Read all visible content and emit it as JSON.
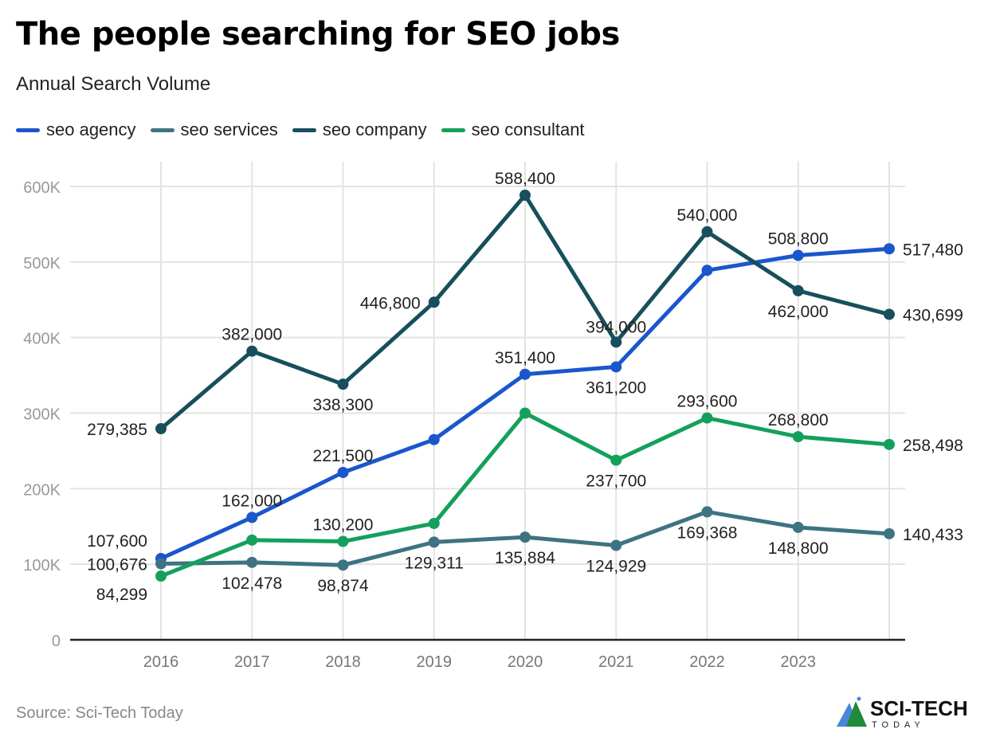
{
  "title": "The people searching for SEO jobs",
  "subtitle": "Annual Search Volume",
  "source": "Source: Sci-Tech Today",
  "logo": {
    "text": "SCI-TECH",
    "subtext": "TODAY"
  },
  "chart_data": {
    "type": "line",
    "title": "The people searching for SEO jobs",
    "subtitle": "Annual Search Volume",
    "x": [
      "2016",
      "2017",
      "2018",
      "2019",
      "2020",
      "2021",
      "2022",
      "2023",
      ""
    ],
    "x_tick_labels": [
      "2016",
      "2017",
      "2018",
      "2019",
      "2020",
      "2021",
      "2022",
      "2023"
    ],
    "y_ticks": [
      0,
      100000,
      200000,
      300000,
      400000,
      500000,
      600000
    ],
    "y_tick_labels": [
      "0",
      "100K",
      "200K",
      "300K",
      "400K",
      "500K",
      "600K"
    ],
    "ylim": [
      0,
      620000
    ],
    "grid": true,
    "legend_position": "top-left",
    "series": [
      {
        "name": "seo agency",
        "color": "#1a56cc",
        "values": [
          107600,
          162000,
          221500,
          265000,
          351400,
          361200,
          489000,
          508800,
          517480
        ],
        "labels": [
          "107,600",
          "162,000",
          "221,500",
          null,
          "351,400",
          "361,200",
          null,
          "508,800",
          "517,480"
        ]
      },
      {
        "name": "seo services",
        "color": "#3e7382",
        "values": [
          100676,
          102478,
          98874,
          129311,
          135884,
          124929,
          169368,
          148800,
          140433
        ],
        "labels": [
          "100,676",
          "102,478",
          "98,874",
          "129,311",
          "135,884",
          "124,929",
          "169,368",
          "148,800",
          "140,433"
        ]
      },
      {
        "name": "seo company",
        "color": "#174f5c",
        "values": [
          279385,
          382000,
          338300,
          446800,
          588400,
          394000,
          540000,
          462000,
          430699
        ],
        "labels": [
          "279,385",
          "382,000",
          "338,300",
          "446,800",
          "588,400",
          "394,000",
          "540,000",
          "462,000",
          "430,699"
        ]
      },
      {
        "name": "seo consultant",
        "color": "#13a05b",
        "values": [
          84299,
          132000,
          130200,
          154000,
          300000,
          237700,
          293600,
          268800,
          258498
        ],
        "labels": [
          "84,299",
          null,
          "130,200",
          null,
          null,
          "237,700",
          "293,600",
          "268,800",
          "258,498"
        ]
      }
    ]
  }
}
